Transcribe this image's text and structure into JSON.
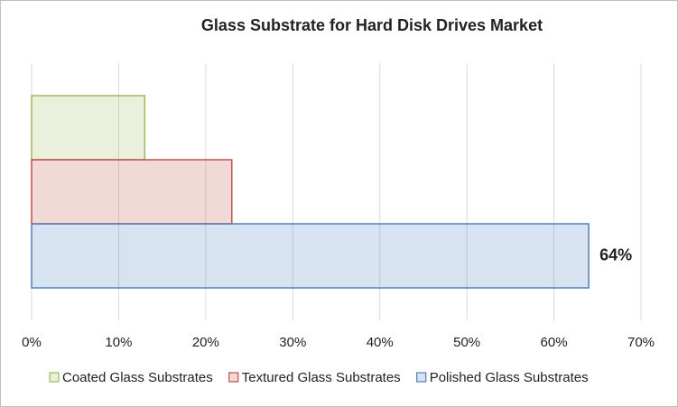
{
  "chart_data": {
    "type": "hbar",
    "title": "Glass Substrate for Hard Disk Drives Market",
    "series": [
      {
        "name": "Coated Glass Substrates",
        "color": "#9bbb59",
        "values": [
          13
        ]
      },
      {
        "name": "Textured Glass Substrates",
        "color": "#c0504d",
        "values": [
          23
        ]
      },
      {
        "name": "Polished Glass Substrates",
        "color": "#4f81bd",
        "values": [
          64
        ],
        "value_labels": [
          "64%"
        ]
      }
    ],
    "xlim": [
      0,
      70
    ],
    "xticks": [
      {
        "value": 0,
        "label": "0%"
      },
      {
        "value": 10,
        "label": "10%"
      },
      {
        "value": 20,
        "label": "20%"
      },
      {
        "value": 30,
        "label": "30%"
      },
      {
        "value": 40,
        "label": "40%"
      },
      {
        "value": 50,
        "label": "50%"
      },
      {
        "value": 60,
        "label": "60%"
      },
      {
        "value": 70,
        "label": "70%"
      }
    ],
    "grid": true,
    "legend": "bottom"
  }
}
